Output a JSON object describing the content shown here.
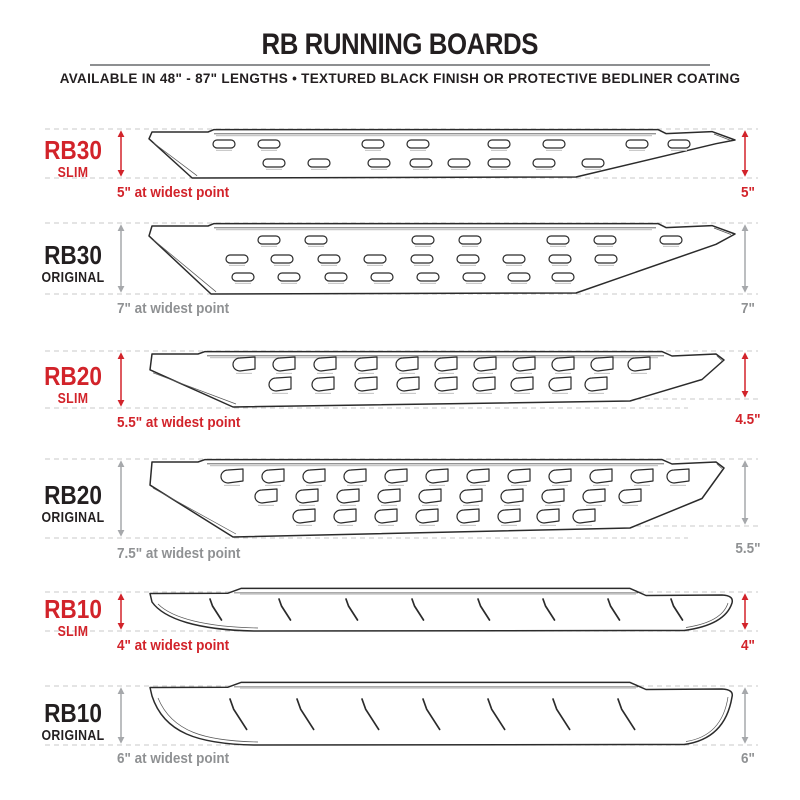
{
  "header": {
    "title": "RB RUNNING BOARDS",
    "subtitle": "AVAILABLE IN 48\" - 87\" LENGTHS   •   TEXTURED BLACK FINISH OR PROTECTIVE BEDLINER COATING"
  },
  "rows": [
    {
      "name": "RB30",
      "variant": "SLIM",
      "front_measurement": "5\" at widest point",
      "rear_measurement": "5\""
    },
    {
      "name": "RB30",
      "variant": "ORIGINAL",
      "front_measurement": "7\" at widest point",
      "rear_measurement": "7\""
    },
    {
      "name": "RB20",
      "variant": "SLIM",
      "front_measurement": "5.5\" at widest point",
      "rear_measurement": "4.5\""
    },
    {
      "name": "RB20",
      "variant": "ORIGINAL",
      "front_measurement": "7.5\" at widest point",
      "rear_measurement": "5.5\""
    },
    {
      "name": "RB10",
      "variant": "SLIM",
      "front_measurement": "4\" at widest point",
      "rear_measurement": "4\""
    },
    {
      "name": "RB10",
      "variant": "ORIGINAL",
      "front_measurement": "6\" at widest point",
      "rear_measurement": "6\""
    }
  ],
  "colors": {
    "accent_red": "#d2232a",
    "label_ink": "#231f20",
    "measure_gray": "#8f9193",
    "arrow_gray": "#a6a8ab",
    "dash_gray": "#c9c9c9",
    "outline_ink": "#2b2b2b",
    "accent_line": "#555555",
    "shadow_gray": "#c7c7c7"
  }
}
